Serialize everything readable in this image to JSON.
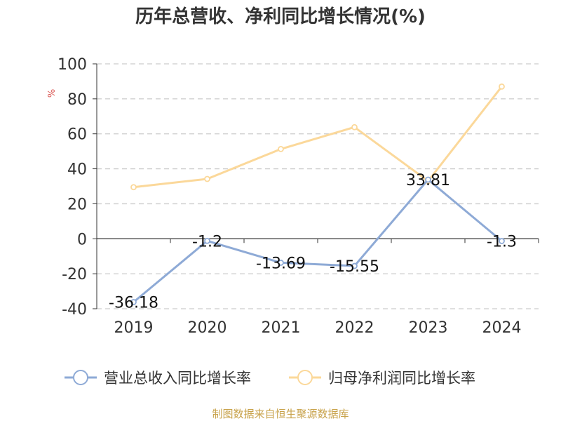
{
  "title": "历年总营收、净利同比增长情况(%)",
  "source": "制图数据来自恒生聚源数据库",
  "colors": {
    "revenue": "#8eaad6",
    "profit": "#fbd89a",
    "grid": "#cccccc",
    "axis": "#333333",
    "source": "#c8a24a",
    "unit": "#d9534f"
  },
  "chart_data": {
    "type": "line",
    "ylabel": "%",
    "ylim": [
      -40,
      100
    ],
    "yticks": [
      100,
      80,
      60,
      40,
      20,
      0,
      -20,
      -40
    ],
    "categories": [
      "2019",
      "2020",
      "2021",
      "2022",
      "2023",
      "2024"
    ],
    "grid": true,
    "legend_position": "bottom",
    "series": [
      {
        "name": "营业总收入同比增长率",
        "color": "#8eaad6",
        "values": [
          -36.18,
          -1.2,
          -13.69,
          -15.55,
          33.81,
          -1.3
        ],
        "labels": [
          "-36.18",
          "-1.2",
          "-13.69",
          "-15.55",
          "33.81",
          "-1.3"
        ]
      },
      {
        "name": "归母净利润同比增长率",
        "color": "#fbd89a",
        "values": [
          29.5,
          34.2,
          51.3,
          63.8,
          33.0,
          87.0
        ]
      }
    ]
  }
}
